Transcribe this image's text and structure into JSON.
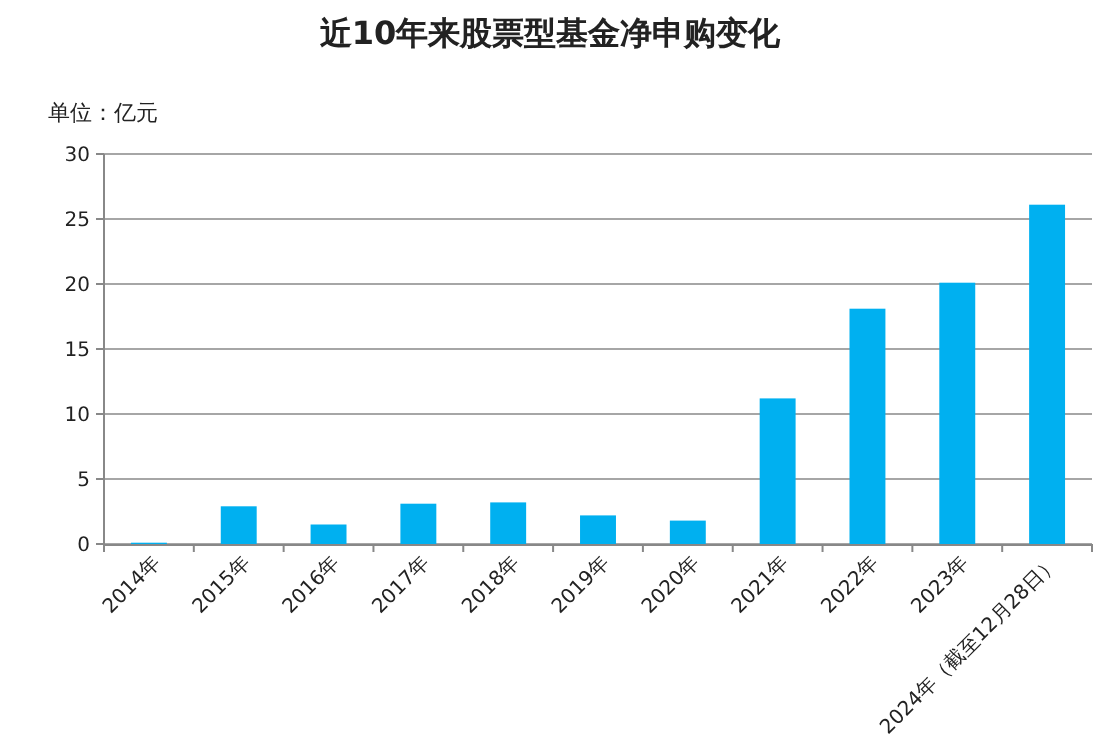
{
  "chart_data": {
    "type": "bar",
    "title": "近10年来股票型基金净申购变化",
    "ylabel": "单位：亿元",
    "categories": [
      "2014年",
      "2015年",
      "2016年",
      "2017年",
      "2018年",
      "2019年",
      "2020年",
      "2021年",
      "2022年",
      "2023年",
      "2024年（截至12月28日）"
    ],
    "values": [
      0.1,
      2.9,
      1.5,
      3.1,
      3.2,
      2.2,
      1.8,
      11.2,
      18.1,
      20.1,
      26.1
    ],
    "color": "#00b0f0",
    "ylim": [
      0,
      30
    ],
    "yticks": [
      0,
      5,
      10,
      15,
      20,
      25,
      30
    ],
    "grid": "y"
  }
}
